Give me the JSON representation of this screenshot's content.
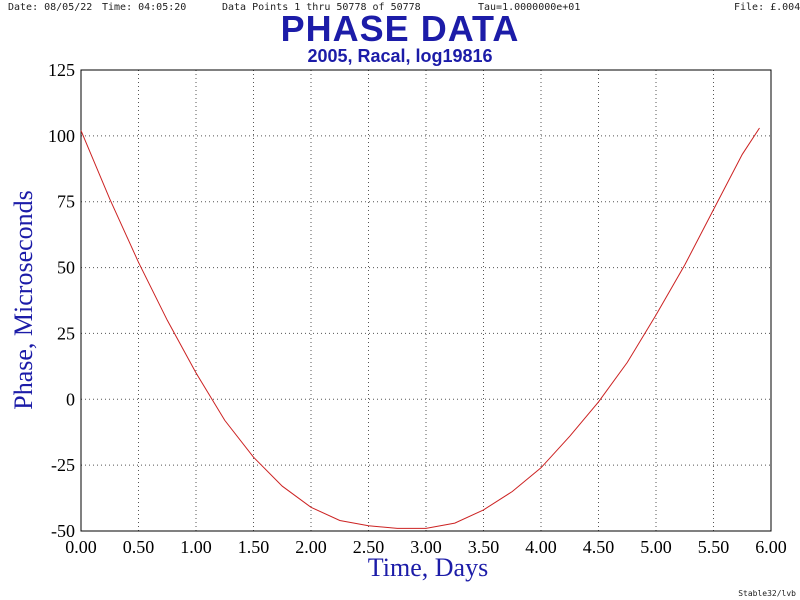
{
  "header": {
    "date": "Date: 08/05/22",
    "time": "Time: 04:05:20",
    "points": "Data Points 1 thru 50778 of 50778",
    "tau": "Tau=1.0000000e+01",
    "file": "File: £.004"
  },
  "footer": {
    "credit": "Stable32/lvb"
  },
  "colors": {
    "title": "#1c1ca8",
    "curve": "#cc2222",
    "grid": "#555555"
  },
  "chart_data": {
    "type": "line",
    "title": "PHASE DATA",
    "subtitle": "2005, Racal, log19816",
    "xlabel": "Time,  Days",
    "ylabel": "Phase,  Microseconds",
    "xlim": [
      0,
      6
    ],
    "ylim": [
      -50,
      125
    ],
    "grid": true,
    "xticks": [
      0,
      0.5,
      1,
      1.5,
      2,
      2.5,
      3,
      3.5,
      4,
      4.5,
      5,
      5.5,
      6
    ],
    "xtick_labels": [
      "0.00",
      "0.50",
      "1.00",
      "1.50",
      "2.00",
      "2.50",
      "3.00",
      "3.50",
      "4.00",
      "4.50",
      "5.00",
      "5.50",
      "6.00"
    ],
    "yticks": [
      -50,
      -25,
      0,
      25,
      50,
      75,
      100,
      125
    ],
    "ytick_labels": [
      "-50",
      "-25",
      "0",
      "25",
      "50",
      "75",
      "100",
      "125"
    ],
    "series": [
      {
        "x": [
          0,
          0.25,
          0.5,
          0.75,
          1.0,
          1.25,
          1.5,
          1.75,
          2.0,
          2.25,
          2.5,
          2.75,
          3.0,
          3.25,
          3.5,
          3.75,
          4.0,
          4.25,
          4.5,
          4.75,
          5.0,
          5.25,
          5.5,
          5.75,
          5.9
        ],
        "y": [
          102,
          76,
          52,
          30,
          10,
          -8,
          -22,
          -33,
          -41,
          -46,
          -48,
          -49,
          -49,
          -47,
          -42,
          -35,
          -26,
          -14,
          -1,
          14,
          32,
          51,
          72,
          93,
          103
        ]
      }
    ]
  }
}
